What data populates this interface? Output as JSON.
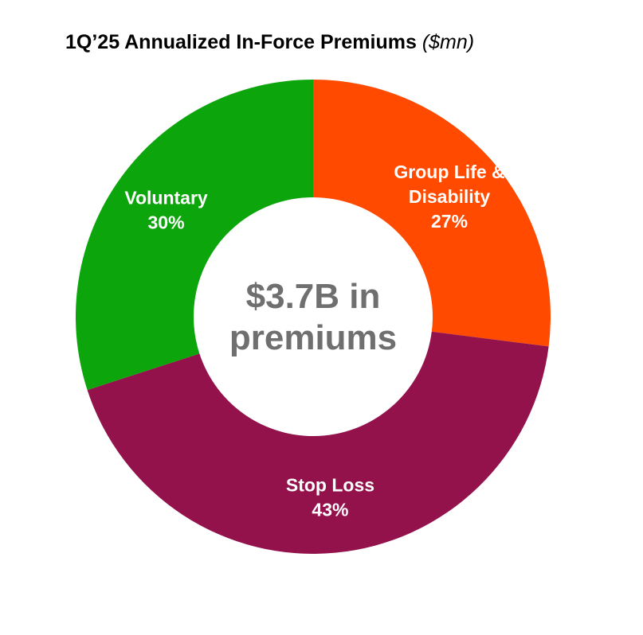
{
  "chart_data": {
    "type": "pie",
    "title": "1Q’25 Annualized In-Force Premiums",
    "title_unit": "($mn)",
    "center_label": [
      "$3.7B in",
      "premiums"
    ],
    "slices": [
      {
        "name": "Group Life & Disability",
        "label_lines": [
          "Group Life &",
          "Disability"
        ],
        "value": 27,
        "value_label": "27%",
        "color": "#ff4a00"
      },
      {
        "name": "Stop Loss",
        "label_lines": [
          "Stop Loss"
        ],
        "value": 43,
        "value_label": "43%",
        "color": "#93124c"
      },
      {
        "name": "Voluntary",
        "label_lines": [
          "Voluntary"
        ],
        "value": 30,
        "value_label": "30%",
        "color": "#0ca50c"
      }
    ],
    "colors": {
      "label_text": "#ffffff",
      "center_text": "#6f6f6f",
      "background": "#ffffff"
    }
  }
}
